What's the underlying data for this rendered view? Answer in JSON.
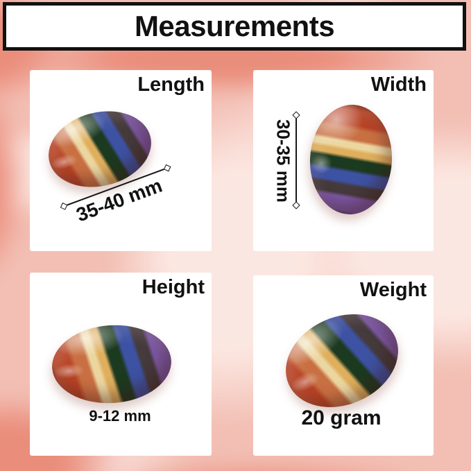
{
  "title": "Measurements",
  "panels": {
    "length": {
      "label": "Length",
      "value": "35-40 mm"
    },
    "width": {
      "label": "Width",
      "value": "30-35 mm"
    },
    "height": {
      "label": "Height",
      "value": "9-12 mm"
    },
    "weight": {
      "label": "Weight",
      "value": "20 gram"
    }
  },
  "icons": {
    "stone": "seven-chakra-striped-oval-worry-stone-photo",
    "measure_endpoint": "open-diamond-endpoint"
  },
  "colors": {
    "text": "#111111",
    "title-border": "#111111",
    "panel-bg": "#ffffff",
    "bg-base": "#f3bfb4",
    "bg-deep": "#ea8d7b",
    "bg-light": "#fbe7e1",
    "stone-red-deep": "#8e2b12",
    "stone-red": "#b84325",
    "stone-orange": "#c97043",
    "stone-cream": "#ecd6a0",
    "stone-yellow": "#dfaf5e",
    "stone-green": "#1c3a20",
    "stone-blue": "#3e52a3",
    "stone-dark": "#453a3c",
    "stone-purple": "#7d59a8",
    "stone-purple-deep": "#5e4187"
  }
}
